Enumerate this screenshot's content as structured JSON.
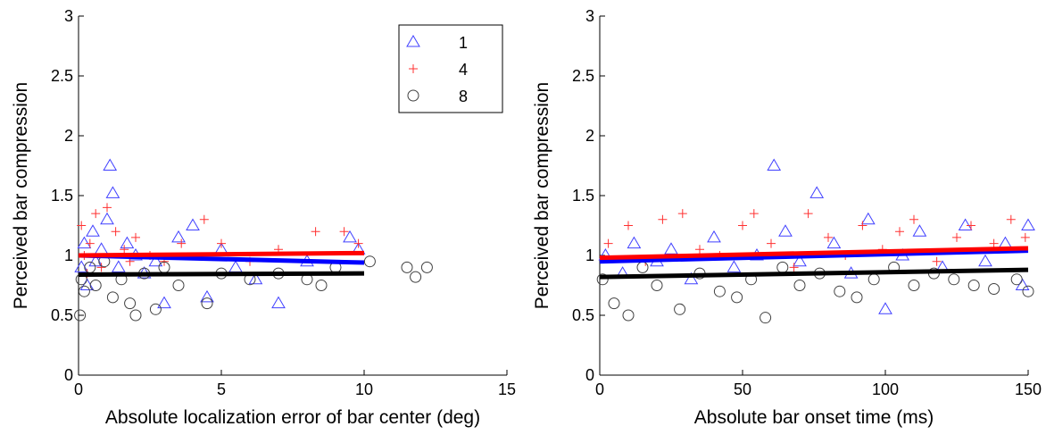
{
  "chart_data": [
    {
      "type": "scatter",
      "xlabel": "Absolute localization error of bar center (deg)",
      "ylabel": "Perceived bar compression",
      "xlim": [
        0,
        15
      ],
      "ylim": [
        0,
        3
      ],
      "xticks": [
        0,
        5,
        10,
        15
      ],
      "yticks": [
        0,
        0.5,
        1,
        1.5,
        2,
        2.5,
        3
      ],
      "legend": "upper right",
      "series": [
        {
          "name": "1",
          "color": "#4040ff",
          "marker": "triangle",
          "x": [
            0.1,
            0.2,
            0.3,
            0.5,
            0.6,
            0.8,
            1.0,
            1.1,
            1.2,
            1.4,
            1.7,
            2.0,
            2.3,
            2.7,
            3.0,
            3.5,
            4.0,
            4.5,
            5.0,
            5.5,
            6.2,
            7.0,
            8.0,
            9.5,
            9.8
          ],
          "values": [
            0.9,
            1.1,
            0.75,
            1.2,
            0.95,
            1.05,
            1.3,
            1.75,
            1.52,
            0.9,
            1.1,
            1.0,
            0.85,
            0.95,
            0.6,
            1.15,
            1.25,
            0.65,
            1.05,
            0.9,
            0.8,
            0.6,
            0.95,
            1.15,
            1.05
          ],
          "fit": {
            "color": "#0000ff",
            "x": [
              0,
              10
            ],
            "values": [
              1.0,
              0.94
            ]
          }
        },
        {
          "name": "4",
          "color": "#ff3030",
          "marker": "plus",
          "x": [
            0.1,
            0.2,
            0.4,
            0.6,
            0.8,
            1.0,
            1.3,
            1.6,
            2.0,
            2.5,
            3.0,
            3.6,
            4.4,
            5.0,
            6.0,
            7.0,
            8.3,
            9.3,
            9.8,
            0.3,
            1.8
          ],
          "values": [
            1.25,
            1.0,
            1.1,
            1.35,
            0.9,
            1.4,
            1.2,
            1.05,
            1.15,
            1.0,
            0.95,
            1.1,
            1.3,
            1.1,
            0.95,
            1.05,
            1.2,
            1.2,
            1.1,
            0.85,
            0.95
          ],
          "fit": {
            "color": "#ff0000",
            "x": [
              0,
              10
            ],
            "values": [
              1.0,
              1.02
            ]
          }
        },
        {
          "name": "8",
          "color": "#404040",
          "marker": "circle",
          "x": [
            0.05,
            0.1,
            0.2,
            0.4,
            0.6,
            0.9,
            1.2,
            1.5,
            1.8,
            2.0,
            2.3,
            2.7,
            3.0,
            3.5,
            4.5,
            5.0,
            6.0,
            7.0,
            8.0,
            8.5,
            9.0,
            10.2,
            11.5,
            11.8,
            12.2
          ],
          "values": [
            0.5,
            0.8,
            0.7,
            0.9,
            0.75,
            0.95,
            0.65,
            0.8,
            0.6,
            0.5,
            0.85,
            0.55,
            0.9,
            0.75,
            0.6,
            0.85,
            0.8,
            0.85,
            0.8,
            0.75,
            0.9,
            0.95,
            0.9,
            0.82,
            0.9
          ],
          "fit": {
            "color": "#000000",
            "x": [
              0,
              10
            ],
            "values": [
              0.84,
              0.85
            ]
          }
        }
      ]
    },
    {
      "type": "scatter",
      "xlabel": "Absolute bar onset time (ms)",
      "ylabel": "Perceived bar compression",
      "xlim": [
        0,
        150
      ],
      "ylim": [
        0,
        3
      ],
      "xticks": [
        0,
        50,
        100,
        150
      ],
      "yticks": [
        0,
        0.5,
        1,
        1.5,
        2,
        2.5,
        3
      ],
      "series": [
        {
          "color": "#4040ff",
          "marker": "triangle",
          "x": [
            2,
            8,
            12,
            20,
            25,
            32,
            40,
            47,
            55,
            61,
            65,
            70,
            76,
            82,
            88,
            94,
            100,
            106,
            112,
            120,
            128,
            135,
            142,
            148,
            150
          ],
          "values": [
            1.0,
            0.85,
            1.1,
            0.95,
            1.05,
            0.8,
            1.15,
            0.9,
            1.0,
            1.75,
            1.2,
            0.95,
            1.52,
            1.1,
            0.85,
            1.3,
            0.55,
            1.0,
            1.2,
            0.9,
            1.25,
            0.95,
            1.1,
            0.75,
            1.25
          ],
          "fit": {
            "color": "#0000ff",
            "x": [
              0,
              150
            ],
            "values": [
              0.95,
              1.04
            ]
          }
        },
        {
          "color": "#ff3030",
          "marker": "plus",
          "x": [
            3,
            10,
            16,
            22,
            29,
            35,
            42,
            50,
            54,
            60,
            68,
            73,
            80,
            86,
            92,
            99,
            105,
            110,
            118,
            125,
            130,
            138,
            144,
            149
          ],
          "values": [
            1.1,
            1.25,
            0.95,
            1.3,
            1.35,
            1.05,
            1.0,
            1.25,
            1.35,
            1.1,
            0.9,
            1.35,
            1.15,
            1.0,
            1.25,
            1.05,
            1.2,
            1.3,
            0.95,
            1.15,
            1.25,
            1.1,
            1.3,
            1.15
          ],
          "fit": {
            "color": "#ff0000",
            "x": [
              0,
              150
            ],
            "values": [
              0.98,
              1.06
            ]
          }
        },
        {
          "color": "#404040",
          "marker": "circle",
          "x": [
            1,
            5,
            10,
            15,
            20,
            28,
            35,
            42,
            48,
            53,
            58,
            64,
            70,
            77,
            84,
            90,
            96,
            103,
            110,
            117,
            124,
            131,
            138,
            146,
            150
          ],
          "values": [
            0.8,
            0.6,
            0.5,
            0.9,
            0.75,
            0.55,
            0.85,
            0.7,
            0.65,
            0.8,
            0.48,
            0.9,
            0.75,
            0.85,
            0.7,
            0.65,
            0.8,
            0.9,
            0.75,
            0.85,
            0.8,
            0.75,
            0.72,
            0.8,
            0.7
          ],
          "fit": {
            "color": "#000000",
            "x": [
              0,
              150
            ],
            "values": [
              0.82,
              0.88
            ]
          }
        }
      ]
    }
  ]
}
